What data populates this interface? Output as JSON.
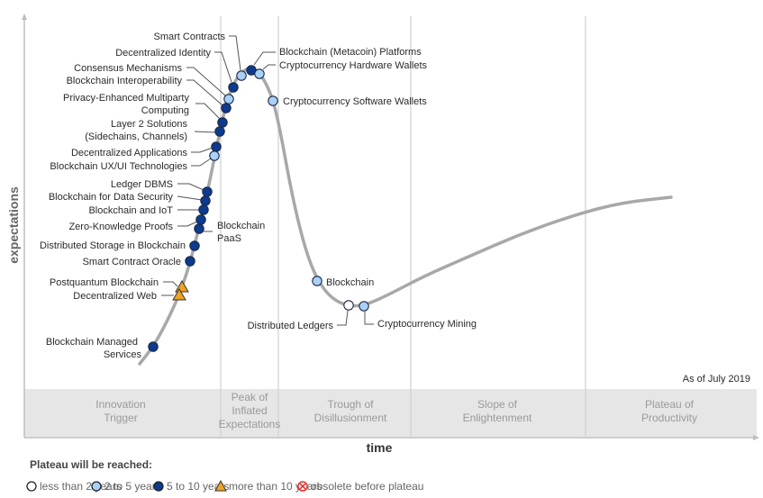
{
  "axes": {
    "y_label": "expectations",
    "x_label": "time"
  },
  "as_of": "As of July 2019",
  "phases": [
    {
      "lines": [
        "Innovation",
        "Trigger"
      ]
    },
    {
      "lines": [
        "Peak of",
        "Inflated",
        "Expectations"
      ]
    },
    {
      "lines": [
        "Trough of",
        "Disillusionment"
      ]
    },
    {
      "lines": [
        "Slope of",
        "Enlightenment"
      ]
    },
    {
      "lines": [
        "Plateau of",
        "Productivity"
      ]
    }
  ],
  "legend": {
    "title": "Plateau will be reached:",
    "items": [
      {
        "key": "lt2",
        "label": "less than 2 years",
        "color": "#ffffff"
      },
      {
        "key": "2to5",
        "label": "2 to 5 years",
        "color": "#a9d1f7"
      },
      {
        "key": "5to10",
        "label": "5 to 10 years",
        "color": "#0b3a8f"
      },
      {
        "key": "gt10",
        "label": "more than 10 years",
        "color": "#f0a323"
      },
      {
        "key": "obsolete",
        "label": "obsolete before plateau",
        "color": "#e03030"
      }
    ]
  },
  "technologies": [
    {
      "lines": [
        "Smart Contracts"
      ],
      "plateau": "2to5"
    },
    {
      "lines": [
        "Decentralized Identity"
      ],
      "plateau": "5to10"
    },
    {
      "lines": [
        "Consensus Mechanisms"
      ],
      "plateau": "2to5"
    },
    {
      "lines": [
        "Blockchain Interoperability"
      ],
      "plateau": "5to10"
    },
    {
      "lines": [
        "Privacy-Enhanced Multiparty",
        "Computing"
      ],
      "plateau": "5to10"
    },
    {
      "lines": [
        "Layer 2 Solutions",
        "(Sidechains, Channels)"
      ],
      "plateau": "5to10"
    },
    {
      "lines": [
        "Decentralized Applications"
      ],
      "plateau": "5to10"
    },
    {
      "lines": [
        "Blockchain UX/UI Technologies"
      ],
      "plateau": "2to5"
    },
    {
      "lines": [
        "Ledger DBMS"
      ],
      "plateau": "5to10"
    },
    {
      "lines": [
        "Blockchain for Data Security"
      ],
      "plateau": "5to10"
    },
    {
      "lines": [
        "Blockchain and IoT"
      ],
      "plateau": "5to10"
    },
    {
      "lines": [
        "Zero-Knowledge Proofs"
      ],
      "plateau": "5to10"
    },
    {
      "lines": [
        "Blockchain",
        "PaaS"
      ],
      "plateau": "5to10"
    },
    {
      "lines": [
        "Distributed Storage in Blockchain"
      ],
      "plateau": "5to10"
    },
    {
      "lines": [
        "Smart Contract Oracle"
      ],
      "plateau": "5to10"
    },
    {
      "lines": [
        "Postquantum Blockchain"
      ],
      "plateau": "gt10"
    },
    {
      "lines": [
        "Decentralized Web"
      ],
      "plateau": "gt10"
    },
    {
      "lines": [
        "Blockchain Managed",
        "Services"
      ],
      "plateau": "5to10"
    },
    {
      "lines": [
        "Blockchain (Metacoin) Platforms"
      ],
      "plateau": "5to10"
    },
    {
      "lines": [
        "Cryptocurrency Hardware Wallets"
      ],
      "plateau": "2to5"
    },
    {
      "lines": [
        "Cryptocurrency Software Wallets"
      ],
      "plateau": "2to5"
    },
    {
      "lines": [
        "Blockchain"
      ],
      "plateau": "2to5"
    },
    {
      "lines": [
        "Distributed Ledgers"
      ],
      "plateau": "lt2"
    },
    {
      "lines": [
        "Cryptocurrency Mining"
      ],
      "plateau": "2to5"
    }
  ]
}
